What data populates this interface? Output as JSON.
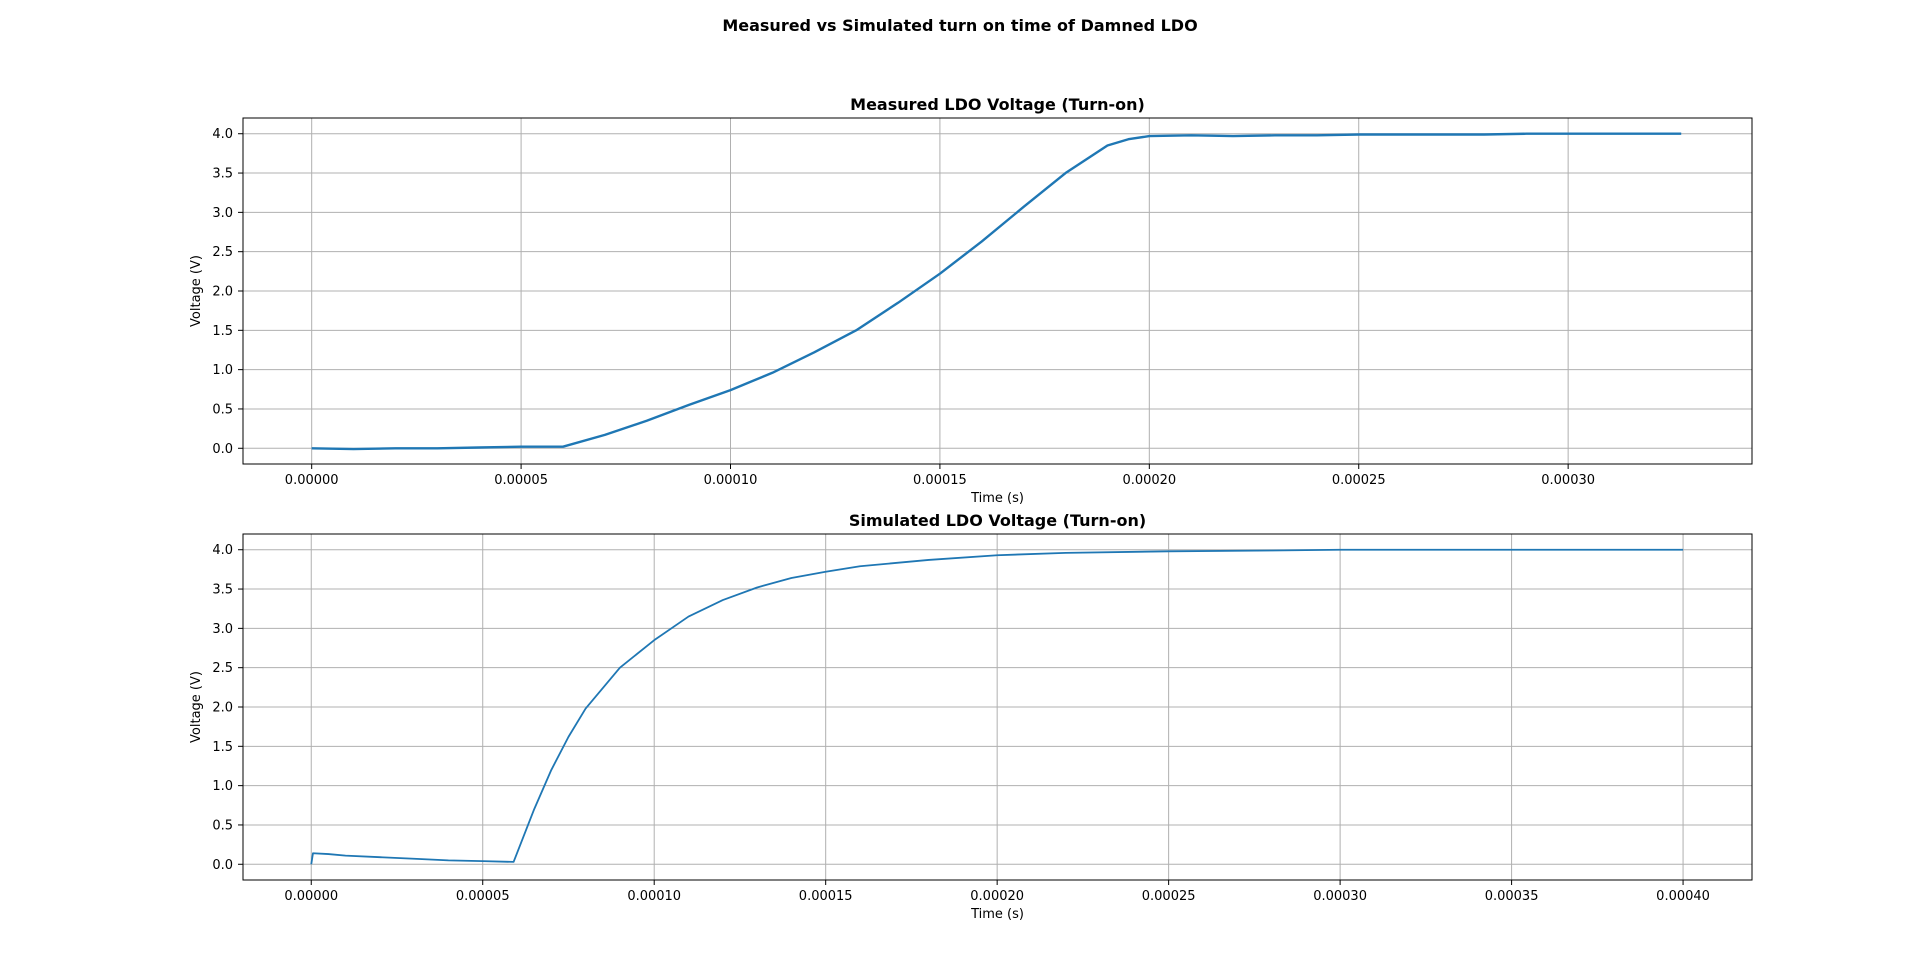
{
  "figure": {
    "suptitle": "Measured vs Simulated turn on time of Damned LDO",
    "line_color": "#1f77b4",
    "grid_color": "#b0b0b0"
  },
  "chart_data": [
    {
      "type": "line",
      "title": "Measured LDO Voltage (Turn-on)",
      "xlabel": "Time (s)",
      "ylabel": "Voltage (V)",
      "xlim": [
        -1.64e-05,
        0.0003439
      ],
      "ylim": [
        -0.2,
        4.2
      ],
      "xticks": [
        0.0,
        5e-05,
        0.0001,
        0.00015,
        0.0002,
        0.00025,
        0.0003
      ],
      "xtick_labels": [
        "0.00000",
        "0.00005",
        "0.00010",
        "0.00015",
        "0.00020",
        "0.00025",
        "0.00030"
      ],
      "yticks": [
        0.0,
        0.5,
        1.0,
        1.5,
        2.0,
        2.5,
        3.0,
        3.5,
        4.0
      ],
      "ytick_labels": [
        "0.0",
        "0.5",
        "1.0",
        "1.5",
        "2.0",
        "2.5",
        "3.0",
        "3.5",
        "4.0"
      ],
      "grid": true,
      "series": [
        {
          "x": [
            0.0,
            1e-05,
            2e-05,
            3e-05,
            4e-05,
            5e-05,
            6e-05,
            7e-05,
            8e-05,
            9e-05,
            0.0001,
            0.00011,
            0.00012,
            0.00013,
            0.00014,
            0.00015,
            0.00016,
            0.00017,
            0.00018,
            0.00019,
            0.000195,
            0.0002,
            0.00021,
            0.00022,
            0.00023,
            0.00024,
            0.00025,
            0.00026,
            0.00027,
            0.00028,
            0.00029,
            0.0003,
            0.00031,
            0.00032,
            0.000327
          ],
          "y": [
            0.0,
            -0.01,
            0.0,
            0.0,
            0.01,
            0.02,
            0.02,
            0.17,
            0.35,
            0.55,
            0.74,
            0.96,
            1.22,
            1.5,
            1.85,
            2.22,
            2.63,
            3.07,
            3.5,
            3.85,
            3.93,
            3.97,
            3.98,
            3.97,
            3.98,
            3.98,
            3.99,
            3.99,
            3.99,
            3.99,
            4.0,
            4.0,
            4.0,
            4.0,
            4.0
          ]
        }
      ]
    },
    {
      "type": "line",
      "title": "Simulated LDO Voltage (Turn-on)",
      "xlabel": "Time (s)",
      "ylabel": "Voltage (V)",
      "xlim": [
        -1.99e-05,
        0.0004201
      ],
      "ylim": [
        -0.2,
        4.2
      ],
      "xticks": [
        0.0,
        5e-05,
        0.0001,
        0.00015,
        0.0002,
        0.00025,
        0.0003,
        0.00035,
        0.0004
      ],
      "xtick_labels": [
        "0.00000",
        "0.00005",
        "0.00010",
        "0.00015",
        "0.00020",
        "0.00025",
        "0.00030",
        "0.00035",
        "0.00040"
      ],
      "yticks": [
        0.0,
        0.5,
        1.0,
        1.5,
        2.0,
        2.5,
        3.0,
        3.5,
        4.0
      ],
      "ytick_labels": [
        "0.0",
        "0.5",
        "1.0",
        "1.5",
        "2.0",
        "2.5",
        "3.0",
        "3.5",
        "4.0"
      ],
      "grid": true,
      "series": [
        {
          "x": [
            0.0,
            5e-07,
            5e-06,
            1e-05,
            2e-05,
            3e-05,
            4e-05,
            5e-05,
            5.9e-05,
            6.5e-05,
            7e-05,
            7.5e-05,
            8e-05,
            9e-05,
            0.0001,
            0.00011,
            0.00012,
            0.00013,
            0.00014,
            0.00015,
            0.00016,
            0.00018,
            0.0002,
            0.00022,
            0.00025,
            0.00028,
            0.0003,
            0.00035,
            0.0004
          ],
          "y": [
            0.0,
            0.14,
            0.13,
            0.11,
            0.09,
            0.07,
            0.05,
            0.04,
            0.03,
            0.7,
            1.2,
            1.62,
            1.98,
            2.5,
            2.85,
            3.15,
            3.36,
            3.52,
            3.64,
            3.72,
            3.79,
            3.87,
            3.93,
            3.96,
            3.98,
            3.99,
            4.0,
            4.0,
            4.0
          ]
        }
      ]
    }
  ]
}
